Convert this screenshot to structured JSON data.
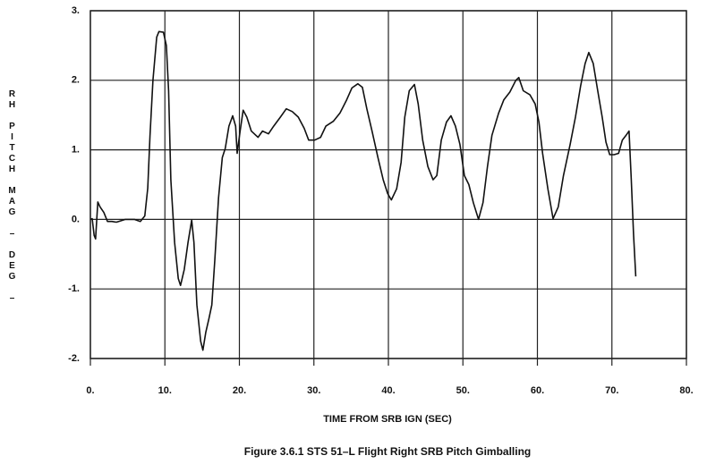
{
  "chart_data": {
    "type": "line",
    "title": "Figure 3.6.1  STS 51–L Flight Right SRB Pitch Gimballing",
    "xlabel": "TIME FROM SRB IGN (SEC)",
    "ylabel": "RH PITCH MAG – DEG –",
    "xlim": [
      0,
      80
    ],
    "ylim": [
      -2,
      3
    ],
    "xticks": [
      {
        "value": 0,
        "label": "0."
      },
      {
        "value": 10,
        "label": "10."
      },
      {
        "value": 20,
        "label": "20."
      },
      {
        "value": 30,
        "label": "30."
      },
      {
        "value": 40,
        "label": "40."
      },
      {
        "value": 50,
        "label": "50."
      },
      {
        "value": 60,
        "label": "60."
      },
      {
        "value": 70,
        "label": "70."
      },
      {
        "value": 80,
        "label": "80."
      }
    ],
    "yticks": [
      {
        "value": -2,
        "label": "-2."
      },
      {
        "value": -1,
        "label": "-1."
      },
      {
        "value": 0,
        "label": "0."
      },
      {
        "value": 1,
        "label": "1."
      },
      {
        "value": 2,
        "label": "2."
      },
      {
        "value": 3,
        "label": "3."
      }
    ],
    "grid": true,
    "series": [
      {
        "color": "#111111",
        "x": [
          0,
          0.24,
          0.5,
          0.7,
          1.0,
          1.3,
          1.8,
          2.3,
          2.9,
          3.5,
          4.7,
          5.9,
          6.7,
          7.3,
          7.7,
          8.0,
          8.4,
          8.9,
          9.2,
          9.8,
          10.2,
          10.5,
          10.8,
          11.3,
          11.8,
          12.1,
          12.6,
          13.1,
          13.6,
          13.9,
          14.3,
          14.8,
          15.1,
          15.5,
          15.9,
          16.3,
          16.7,
          17.2,
          17.7,
          18.1,
          18.6,
          19.1,
          19.5,
          19.7,
          20.1,
          20.5,
          21.0,
          21.6,
          22.5,
          23.1,
          23.9,
          24.6,
          25.5,
          26.3,
          27.1,
          27.9,
          28.7,
          29.3,
          30.1,
          30.9,
          31.6,
          32.6,
          33.5,
          34.4,
          35.1,
          35.9,
          36.5,
          37.1,
          37.8,
          38.6,
          39.3,
          39.9,
          40.4,
          41.1,
          41.7,
          42.2,
          42.8,
          43.5,
          44.0,
          44.6,
          45.3,
          46.0,
          46.5,
          47.1,
          47.8,
          48.4,
          49.0,
          49.6,
          50.2,
          50.8,
          51.4,
          52.1,
          52.7,
          53.3,
          53.9,
          54.8,
          55.5,
          56.3,
          57.1,
          57.5,
          58.1,
          59.0,
          59.7,
          60.2,
          60.7,
          61.4,
          62.1,
          62.8,
          63.5,
          64.4,
          65.1,
          65.8,
          66.4,
          66.9,
          67.5,
          68.1,
          68.7,
          69.2,
          69.7,
          70.3,
          70.9,
          71.4,
          71.9,
          72.3,
          72.6,
          72.9,
          73.2
        ],
        "values": [
          0,
          0.01,
          -0.23,
          -0.28,
          0.25,
          0.18,
          0.1,
          -0.03,
          -0.03,
          -0.04,
          0,
          0,
          -0.03,
          0.05,
          0.45,
          1.2,
          2.0,
          2.62,
          2.7,
          2.69,
          2.5,
          1.85,
          0.57,
          -0.33,
          -0.85,
          -0.95,
          -0.72,
          -0.33,
          -0.01,
          -0.33,
          -1.23,
          -1.75,
          -1.88,
          -1.62,
          -1.43,
          -1.23,
          -0.59,
          0.31,
          0.89,
          1.02,
          1.34,
          1.49,
          1.34,
          0.95,
          1.27,
          1.57,
          1.47,
          1.27,
          1.18,
          1.27,
          1.23,
          1.34,
          1.47,
          1.59,
          1.55,
          1.47,
          1.31,
          1.14,
          1.14,
          1.18,
          1.34,
          1.41,
          1.53,
          1.72,
          1.89,
          1.95,
          1.9,
          1.59,
          1.27,
          0.89,
          0.57,
          0.37,
          0.28,
          0.44,
          0.82,
          1.47,
          1.85,
          1.94,
          1.66,
          1.14,
          0.76,
          0.57,
          0.63,
          1.14,
          1.4,
          1.49,
          1.34,
          1.08,
          0.63,
          0.5,
          0.24,
          0,
          0.24,
          0.76,
          1.21,
          1.53,
          1.72,
          1.83,
          2.0,
          2.04,
          1.85,
          1.79,
          1.66,
          1.4,
          0.95,
          0.44,
          0.01,
          0.18,
          0.63,
          1.08,
          1.47,
          1.92,
          2.24,
          2.4,
          2.24,
          1.85,
          1.47,
          1.11,
          0.93,
          0.93,
          0.95,
          1.14,
          1.21,
          1.27,
          0.57,
          -0.21,
          -0.82
        ]
      }
    ]
  }
}
